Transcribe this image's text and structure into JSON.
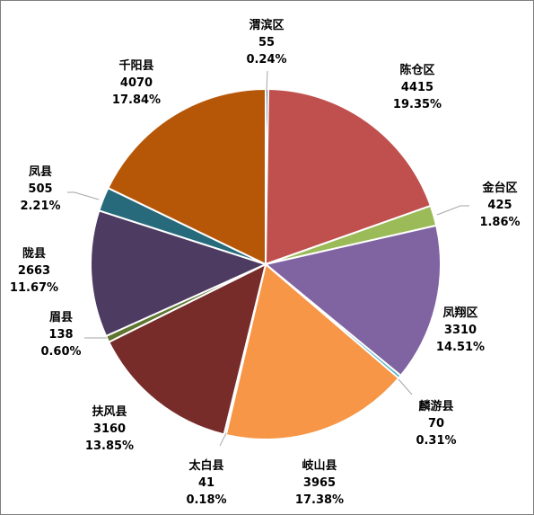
{
  "chart_data": {
    "type": "pie",
    "title": "",
    "show_labels": [
      "category",
      "value",
      "percent"
    ],
    "legend": "none",
    "start_angle_deg": 0,
    "direction": "clockwise",
    "slices": [
      {
        "name": "渭滨区",
        "value": 55,
        "percent": "0.24%",
        "color": "#2c4d75"
      },
      {
        "name": "陈仓区",
        "value": 4415,
        "percent": "19.35%",
        "color": "#c0504d"
      },
      {
        "name": "金台区",
        "value": 425,
        "percent": "1.86%",
        "color": "#9bbb59"
      },
      {
        "name": "凤翔区",
        "value": 3310,
        "percent": "14.51%",
        "color": "#8064a2"
      },
      {
        "name": "麟游县",
        "value": 70,
        "percent": "0.31%",
        "color": "#4bacc6"
      },
      {
        "name": "岐山县",
        "value": 3965,
        "percent": "17.38%",
        "color": "#f79646"
      },
      {
        "name": "太白县",
        "value": 41,
        "percent": "0.18%",
        "color": "#1f497d"
      },
      {
        "name": "扶风县",
        "value": 3160,
        "percent": "13.85%",
        "color": "#772c2a"
      },
      {
        "name": "眉县",
        "value": 138,
        "percent": "0.60%",
        "color": "#5f7530"
      },
      {
        "name": "陇县",
        "value": 2663,
        "percent": "11.67%",
        "color": "#4d3b62"
      },
      {
        "name": "凤县",
        "value": 505,
        "percent": "2.21%",
        "color": "#276a7c"
      },
      {
        "name": "千阳县",
        "value": 4070,
        "percent": "17.84%",
        "color": "#b65708"
      }
    ]
  }
}
